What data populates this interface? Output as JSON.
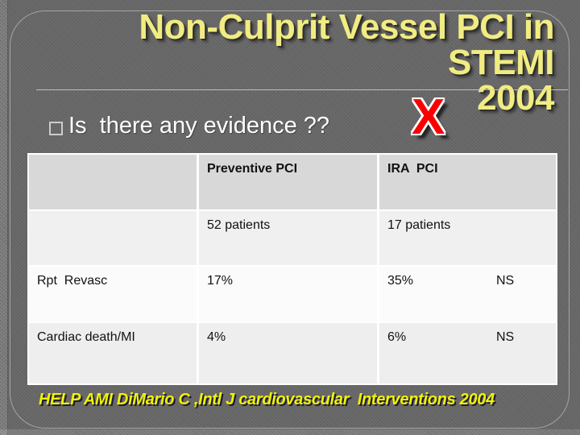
{
  "slide": {
    "title": {
      "line1": "Non-Culprit Vessel PCI in STEMI",
      "line2": "2004"
    },
    "bullet": {
      "text": "Is  there any evidence ??"
    },
    "x_mark": "X",
    "citation": "HELP AMI DiMario C ,Intl J cardiovascular  Interventions 2004"
  },
  "table": {
    "header": [
      "",
      "Preventive PCI",
      "IRA  PCI",
      ""
    ],
    "rows": [
      [
        "",
        "52 patients",
        "17 patients",
        ""
      ],
      [
        "Rpt  Revasc",
        "17%",
        "35%",
        "NS"
      ],
      [
        "Cardiac death/MI",
        "4%",
        "6%",
        "NS"
      ]
    ]
  },
  "colors": {
    "background": "#676767",
    "title_yellow": "#f1ec82",
    "citation_yellow": "#f2f200",
    "x_red": "#fb0000",
    "table_header_bg": "#d8d8d8",
    "row_light": "#f0f0f0",
    "row_lighter": "#fbfbfb",
    "text_white": "#ffffff"
  }
}
